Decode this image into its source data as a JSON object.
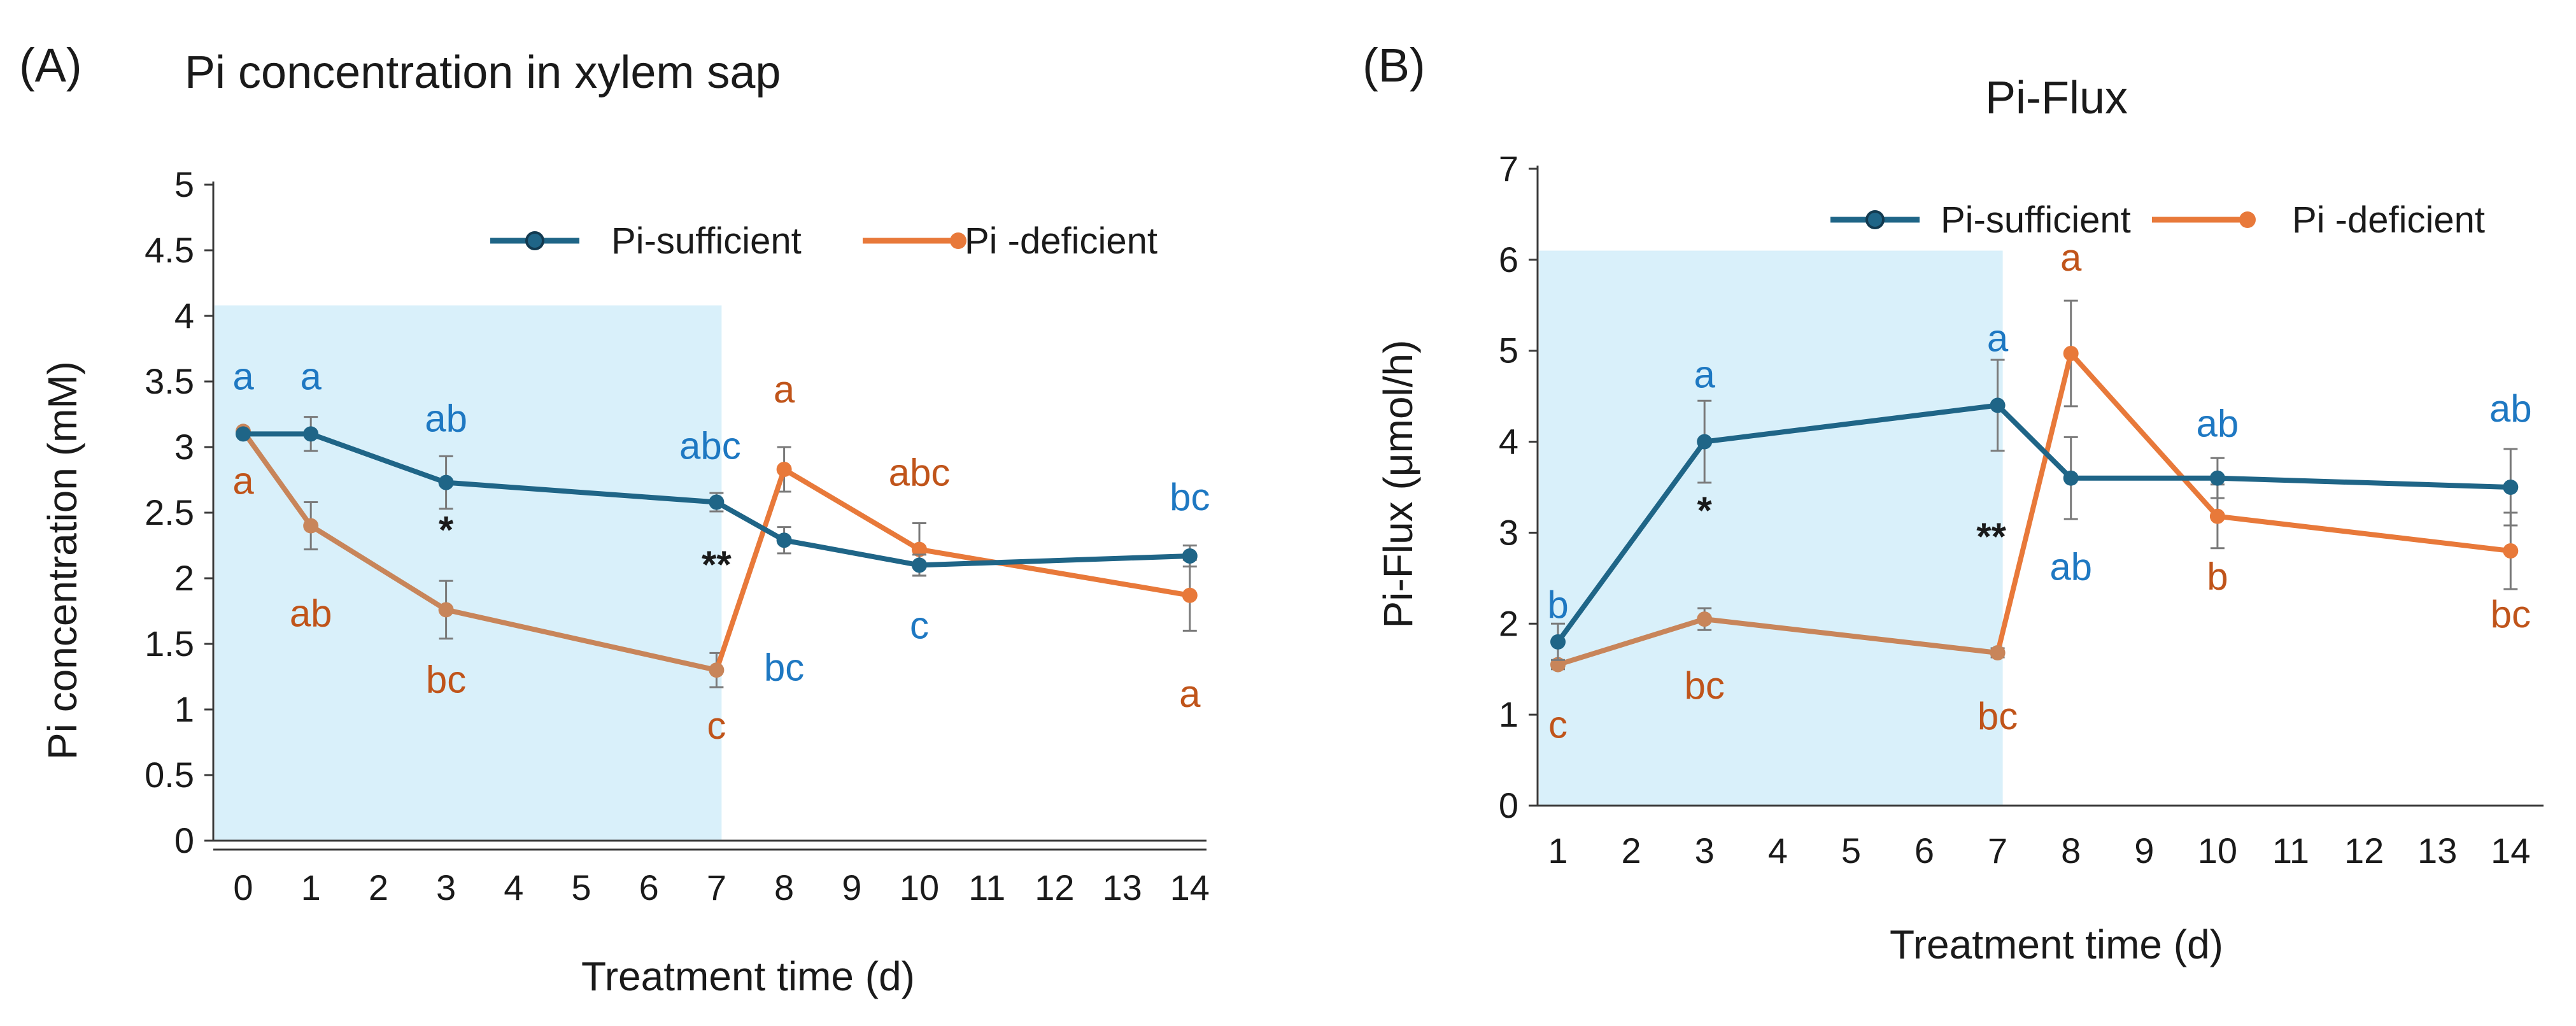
{
  "colors": {
    "sufficient": "#1F6587",
    "deficient": "#E8793A",
    "deficient_early": "#C8855A",
    "letters_sufficient": "#1E78C2",
    "letters_deficient": "#C0541A",
    "shade": "#D9F0FA",
    "axis": "#3A3A3A",
    "errorbar": "#7A7A7A",
    "text": "#1A1A1A"
  },
  "chart_data": [
    {
      "type": "line",
      "panel_label": "(A)",
      "title": "Pi concentration in xylem sap",
      "xlabel": "Treatment time (d)",
      "ylabel": "Pi concentration (mM)",
      "categories": [
        "0",
        "1",
        "2",
        "3",
        "4",
        "5",
        "6",
        "7",
        "8",
        "9",
        "10",
        "11",
        "12",
        "13",
        "14"
      ],
      "ylim": [
        0,
        5
      ],
      "yticks": [
        "0",
        "0.5",
        "1",
        "1.5",
        "2",
        "2.5",
        "3",
        "3.5",
        "4",
        "4.5",
        "5"
      ],
      "shaded_range": {
        "x": [
          0,
          7
        ],
        "y_top": 4.08
      },
      "legend": {
        "placement": "top-right",
        "entries": [
          "Pi-sufficient",
          "Pi -deficient"
        ]
      },
      "series": [
        {
          "name": "Pi-sufficient",
          "x": [
            0,
            1,
            3,
            7,
            8,
            10,
            14
          ],
          "values": [
            3.1,
            3.1,
            2.73,
            2.58,
            2.29,
            2.1,
            2.17
          ],
          "error": [
            0.0,
            0.13,
            0.2,
            0.07,
            0.1,
            0.08,
            0.08
          ],
          "letters": [
            "a",
            "a",
            "ab",
            "abc",
            "bc",
            "c",
            "bc"
          ]
        },
        {
          "name": "Pi -deficient",
          "x": [
            0,
            1,
            3,
            7,
            8,
            10,
            14
          ],
          "values": [
            3.12,
            2.4,
            1.76,
            1.3,
            2.83,
            2.22,
            1.87
          ],
          "error": [
            0.0,
            0.18,
            0.22,
            0.13,
            0.17,
            0.2,
            0.27
          ],
          "letters": [
            "a",
            "ab",
            "bc",
            "c",
            "a",
            "abc",
            "a"
          ]
        }
      ],
      "annotations": [
        {
          "text": "*",
          "x": 3
        },
        {
          "text": "**",
          "x": 7
        }
      ]
    },
    {
      "type": "line",
      "panel_label": "(B)",
      "title": "Pi-Flux",
      "xlabel": "Treatment time (d)",
      "ylabel": "Pi-Flux (μmol/h)",
      "categories": [
        "1",
        "2",
        "3",
        "4",
        "5",
        "6",
        "7",
        "8",
        "9",
        "10",
        "11",
        "12",
        "13",
        "14"
      ],
      "ylim": [
        0,
        7
      ],
      "yticks": [
        "0",
        "1",
        "2",
        "3",
        "4",
        "5",
        "6",
        "7"
      ],
      "shaded_range": {
        "x": [
          1,
          7
        ],
        "y_top": 6.1
      },
      "legend": {
        "placement": "top-right",
        "entries": [
          "Pi-sufficient",
          "Pi -deficient"
        ]
      },
      "series": [
        {
          "name": "Pi-sufficient",
          "x": [
            1,
            3,
            7,
            8,
            10,
            14
          ],
          "values": [
            1.8,
            4.0,
            4.4,
            3.6,
            3.6,
            3.5
          ],
          "error": [
            0.2,
            0.45,
            0.5,
            0.45,
            0.22,
            0.42
          ],
          "letters": [
            "b",
            "a",
            "a",
            "ab",
            "ab",
            "ab"
          ]
        },
        {
          "name": "Pi -deficient",
          "x": [
            1,
            3,
            7,
            8,
            10,
            14
          ],
          "values": [
            1.55,
            2.05,
            1.68,
            4.97,
            3.18,
            2.8
          ],
          "error": [
            0.05,
            0.12,
            0.05,
            0.58,
            0.35,
            0.42
          ],
          "letters": [
            "c",
            "bc",
            "bc",
            "a",
            "b",
            "bc"
          ]
        }
      ],
      "annotations": [
        {
          "text": "*",
          "x": 3
        },
        {
          "text": "**",
          "x": 7
        }
      ]
    }
  ]
}
